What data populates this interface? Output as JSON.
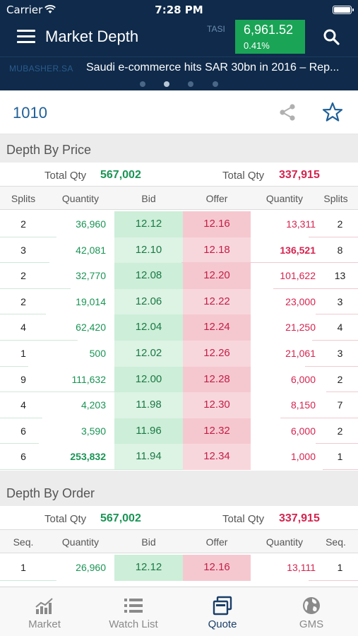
{
  "status_bar": {
    "carrier": "Carrier",
    "time": "7:28 PM"
  },
  "nav": {
    "title": "Market Depth",
    "index_label": "TASI",
    "index_value": "6,961.52",
    "index_change": "0.41%"
  },
  "ticker": {
    "source": "MUBASHER.SA",
    "headline": "Saudi e-commerce hits SAR 30bn in 2016 – Rep..."
  },
  "symbol": "1010",
  "depth_by_price": {
    "title": "Depth By Price",
    "totals": {
      "bid_label": "Total Qty",
      "bid_value": "567,002",
      "offer_label": "Total Qty",
      "offer_value": "337,915"
    },
    "columns": [
      "Splits",
      "Quantity",
      "Bid",
      "Offer",
      "Quantity",
      "Splits"
    ],
    "rows": [
      {
        "bid_splits": "2",
        "bid_qty": "36,960",
        "bid": "12.12",
        "offer": "12.16",
        "offer_qty": "13,311",
        "offer_splits": "2"
      },
      {
        "bid_splits": "3",
        "bid_qty": "42,081",
        "bid": "12.10",
        "offer": "12.18",
        "offer_qty": "136,521",
        "offer_splits": "8"
      },
      {
        "bid_splits": "2",
        "bid_qty": "32,770",
        "bid": "12.08",
        "offer": "12.20",
        "offer_qty": "101,622",
        "offer_splits": "13"
      },
      {
        "bid_splits": "2",
        "bid_qty": "19,014",
        "bid": "12.06",
        "offer": "12.22",
        "offer_qty": "23,000",
        "offer_splits": "3"
      },
      {
        "bid_splits": "4",
        "bid_qty": "62,420",
        "bid": "12.04",
        "offer": "12.24",
        "offer_qty": "21,250",
        "offer_splits": "4"
      },
      {
        "bid_splits": "1",
        "bid_qty": "500",
        "bid": "12.02",
        "offer": "12.26",
        "offer_qty": "21,061",
        "offer_splits": "3"
      },
      {
        "bid_splits": "9",
        "bid_qty": "111,632",
        "bid": "12.00",
        "offer": "12.28",
        "offer_qty": "6,000",
        "offer_splits": "2"
      },
      {
        "bid_splits": "4",
        "bid_qty": "4,203",
        "bid": "11.98",
        "offer": "12.30",
        "offer_qty": "8,150",
        "offer_splits": "7"
      },
      {
        "bid_splits": "6",
        "bid_qty": "3,590",
        "bid": "11.96",
        "offer": "12.32",
        "offer_qty": "6,000",
        "offer_splits": "2"
      },
      {
        "bid_splits": "6",
        "bid_qty": "253,832",
        "bid": "11.94",
        "offer": "12.34",
        "offer_qty": "1,000",
        "offer_splits": "1"
      }
    ]
  },
  "depth_by_order": {
    "title": "Depth By Order",
    "totals": {
      "bid_label": "Total Qty",
      "bid_value": "567,002",
      "offer_label": "Total Qty",
      "offer_value": "337,915"
    },
    "columns": [
      "Seq.",
      "Quantity",
      "Bid",
      "Offer",
      "Quantity",
      "Seq."
    ],
    "rows": [
      {
        "bid_seq": "1",
        "bid_qty": "26,960",
        "bid": "12.12",
        "offer": "12.16",
        "offer_qty": "13,111",
        "offer_seq": "1"
      }
    ]
  },
  "tabs": [
    {
      "label": "Market",
      "icon": "market-chart-icon",
      "active": false
    },
    {
      "label": "Watch List",
      "icon": "list-icon",
      "active": false
    },
    {
      "label": "Quote",
      "icon": "quote-icon",
      "active": true
    },
    {
      "label": "GMS",
      "icon": "globe-icon",
      "active": false
    }
  ],
  "colors": {
    "navy": "#0f2a4a",
    "green": "#1a9455",
    "red": "#d4244f",
    "index_green": "#1aa456",
    "symbol_blue": "#1f5f97"
  }
}
